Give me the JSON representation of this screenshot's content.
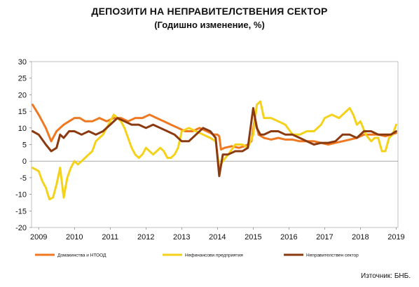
{
  "chart_data": {
    "type": "line",
    "title": "ДЕПОЗИТИ НА НЕПРАВИТЕЛСТВЕНИЯ СЕКТОР",
    "subtitle": "(Годишно изменение, %)",
    "source": "Източник: БНБ.",
    "ylim": [
      -20,
      30
    ],
    "yticks": [
      -20,
      -15,
      -10,
      -5,
      0,
      5,
      10,
      15,
      20,
      25,
      30
    ],
    "xlim": [
      2008.8,
      2019.05
    ],
    "xtick_labels": [
      "2009",
      "2010",
      "2011",
      "2012",
      "2013",
      "2014",
      "2015",
      "2016",
      "2017",
      "2018",
      "2019"
    ],
    "xtick_positions": [
      2009,
      2010,
      2011,
      2012,
      2013,
      2014,
      2015,
      2016,
      2017,
      2018,
      2019
    ],
    "grid": false,
    "legend_position": "bottom",
    "series": [
      {
        "name": "Домакинства и НТООД",
        "color": "#f07820",
        "x": [
          2008.83,
          2009.0,
          2009.2,
          2009.35,
          2009.5,
          2009.7,
          2009.85,
          2010.0,
          2010.15,
          2010.3,
          2010.5,
          2010.7,
          2010.9,
          2011.1,
          2011.3,
          2011.5,
          2011.7,
          2011.9,
          2012.1,
          2012.3,
          2012.5,
          2012.7,
          2012.9,
          2013.1,
          2013.3,
          2013.5,
          2013.7,
          2013.9,
          2014.0,
          2014.05,
          2014.1,
          2014.2,
          2014.4,
          2014.6,
          2014.75,
          2014.85,
          2014.95,
          2015.05,
          2015.15,
          2015.3,
          2015.5,
          2015.7,
          2015.9,
          2016.1,
          2016.3,
          2016.5,
          2016.7,
          2016.9,
          2017.1,
          2017.3,
          2017.5,
          2017.7,
          2017.9,
          2018.1,
          2018.3,
          2018.5,
          2018.7,
          2018.85,
          2019.0
        ],
        "y": [
          17,
          14,
          10,
          6,
          9,
          11,
          12,
          13,
          13,
          12,
          12,
          13,
          12,
          13,
          13,
          12,
          13,
          13,
          14,
          13,
          12,
          11,
          10,
          9,
          9,
          10,
          9,
          8,
          8,
          7.5,
          3.5,
          4,
          4.5,
          4,
          4.5,
          5,
          6,
          13,
          8,
          7,
          6.5,
          7,
          6.5,
          6.5,
          6,
          6,
          6,
          5.5,
          5,
          5.5,
          6,
          6.5,
          7,
          8,
          8,
          8,
          7.5,
          8,
          8.5
        ]
      },
      {
        "name": "Нефинансови предприятия",
        "color": "#f5d21a",
        "x": [
          2008.83,
          2009.0,
          2009.1,
          2009.2,
          2009.3,
          2009.4,
          2009.5,
          2009.6,
          2009.7,
          2009.8,
          2009.9,
          2010.0,
          2010.1,
          2010.2,
          2010.3,
          2010.4,
          2010.5,
          2010.6,
          2010.7,
          2010.8,
          2010.9,
          2011.0,
          2011.1,
          2011.2,
          2011.3,
          2011.4,
          2011.5,
          2011.6,
          2011.7,
          2011.8,
          2011.9,
          2012.0,
          2012.1,
          2012.2,
          2012.3,
          2012.4,
          2012.5,
          2012.6,
          2012.7,
          2012.8,
          2012.9,
          2013.0,
          2013.2,
          2013.4,
          2013.6,
          2013.8,
          2013.95,
          2014.05,
          2014.15,
          2014.3,
          2014.5,
          2014.7,
          2014.85,
          2015.0,
          2015.1,
          2015.2,
          2015.3,
          2015.5,
          2015.7,
          2015.9,
          2016.1,
          2016.3,
          2016.5,
          2016.7,
          2016.9,
          2017.0,
          2017.2,
          2017.4,
          2017.6,
          2017.7,
          2017.8,
          2017.9,
          2018.0,
          2018.15,
          2018.3,
          2018.4,
          2018.5,
          2018.6,
          2018.7,
          2018.8,
          2018.9,
          2019.0
        ],
        "y": [
          -2,
          -3,
          -6,
          -8,
          -11.5,
          -11,
          -7,
          -2,
          -11,
          -5,
          -2,
          0,
          -1,
          0,
          1,
          2,
          3,
          6,
          7,
          8,
          10,
          12,
          14,
          13,
          12,
          10,
          7,
          4,
          2,
          1,
          2,
          4,
          3,
          2,
          3,
          4,
          3,
          1,
          1,
          2,
          4,
          9,
          10,
          9,
          8,
          7,
          6,
          -2,
          0,
          2,
          5,
          5,
          4,
          8,
          17,
          18,
          13,
          13,
          12,
          11,
          8,
          8,
          9,
          9,
          11,
          13,
          14,
          13,
          15,
          16,
          14,
          11,
          12,
          8,
          6,
          7,
          7,
          3,
          3,
          7,
          8,
          11
        ]
      },
      {
        "name": "Неправителствен сектор",
        "color": "#8b3a10",
        "x": [
          2008.83,
          2009.0,
          2009.2,
          2009.35,
          2009.5,
          2009.6,
          2009.7,
          2009.85,
          2010.0,
          2010.2,
          2010.4,
          2010.6,
          2010.8,
          2011.0,
          2011.2,
          2011.4,
          2011.6,
          2011.8,
          2012.0,
          2012.2,
          2012.4,
          2012.6,
          2012.8,
          2013.0,
          2013.2,
          2013.4,
          2013.6,
          2013.8,
          2013.95,
          2014.05,
          2014.15,
          2014.3,
          2014.5,
          2014.7,
          2014.85,
          2015.0,
          2015.1,
          2015.2,
          2015.3,
          2015.5,
          2015.7,
          2015.9,
          2016.1,
          2016.3,
          2016.5,
          2016.7,
          2016.9,
          2017.1,
          2017.3,
          2017.5,
          2017.7,
          2017.9,
          2018.1,
          2018.3,
          2018.5,
          2018.7,
          2018.85,
          2019.0
        ],
        "y": [
          9,
          8,
          5,
          3,
          4,
          8,
          7,
          9,
          9,
          8,
          9,
          8,
          9,
          11,
          13,
          12,
          11,
          11,
          10,
          11,
          10,
          9,
          8,
          6,
          6,
          8,
          10,
          9,
          7,
          -4.5,
          2,
          2,
          3,
          3,
          4,
          16,
          10,
          8,
          8,
          9,
          9,
          8,
          8,
          7,
          6,
          5,
          5.5,
          5.5,
          6,
          8,
          8,
          7,
          9,
          9,
          8,
          8,
          8,
          9
        ]
      }
    ]
  }
}
